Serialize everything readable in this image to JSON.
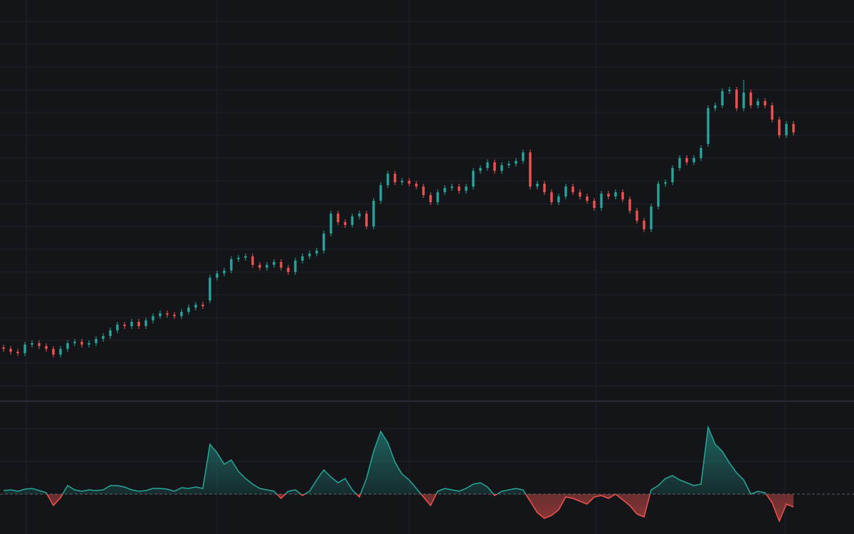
{
  "chart_data": [
    {
      "type": "candlestick",
      "up_color": "#26a69a",
      "down_color": "#ef5350",
      "grid": true,
      "xlim": [
        0,
        120
      ],
      "xticks": [
        3.7,
        30.5,
        57.5,
        83.8,
        110.3
      ],
      "ylim": [
        0,
        560
      ],
      "yticks": [
        20,
        52,
        84,
        116,
        148,
        180,
        212,
        244,
        276,
        308,
        340,
        372,
        404,
        436,
        468,
        500,
        532
      ],
      "open": [
        74,
        72,
        68,
        66,
        78,
        80,
        76,
        72,
        64,
        72,
        80,
        82,
        78,
        80,
        86,
        90,
        98,
        106,
        104,
        110,
        104,
        112,
        118,
        122,
        120,
        118,
        124,
        130,
        134,
        140,
        172,
        178,
        182,
        198,
        200,
        202,
        190,
        186,
        190,
        194,
        186,
        180,
        196,
        202,
        206,
        210,
        234,
        262,
        250,
        246,
        258,
        262,
        244,
        280,
        302,
        318,
        306,
        308,
        304,
        300,
        288,
        278,
        292,
        298,
        300,
        294,
        300,
        322,
        326,
        334,
        322,
        330,
        332,
        336,
        348,
        300,
        304,
        292,
        278,
        286,
        300,
        292,
        286,
        280,
        270,
        290,
        286,
        292,
        282,
        266,
        252,
        240,
        272,
        304,
        306,
        326,
        340,
        334,
        340,
        360,
        410,
        414,
        434,
        436,
        410,
        432,
        414,
        420,
        414,
        394,
        372,
        388
      ],
      "high": [
        78,
        76,
        72,
        82,
        84,
        84,
        80,
        76,
        76,
        84,
        86,
        86,
        84,
        90,
        94,
        102,
        110,
        110,
        114,
        114,
        116,
        122,
        126,
        126,
        124,
        128,
        134,
        138,
        138,
        176,
        182,
        186,
        202,
        204,
        206,
        206,
        194,
        194,
        198,
        198,
        190,
        200,
        206,
        210,
        214,
        238,
        266,
        266,
        254,
        262,
        266,
        266,
        284,
        306,
        322,
        322,
        312,
        312,
        308,
        304,
        292,
        296,
        302,
        304,
        304,
        304,
        326,
        330,
        338,
        338,
        334,
        336,
        340,
        352,
        352,
        308,
        308,
        296,
        290,
        304,
        304,
        296,
        290,
        284,
        294,
        294,
        296,
        296,
        286,
        270,
        256,
        276,
        308,
        310,
        330,
        344,
        344,
        344,
        358,
        414,
        418,
        438,
        440,
        440,
        450,
        436,
        424,
        424,
        418,
        398,
        392,
        392
      ],
      "low": [
        68,
        64,
        62,
        62,
        74,
        72,
        68,
        60,
        60,
        68,
        76,
        74,
        74,
        76,
        82,
        86,
        94,
        100,
        100,
        100,
        100,
        108,
        114,
        116,
        114,
        114,
        120,
        126,
        128,
        136,
        168,
        174,
        178,
        194,
        196,
        186,
        182,
        182,
        186,
        182,
        176,
        176,
        192,
        198,
        202,
        206,
        230,
        246,
        242,
        242,
        254,
        240,
        240,
        276,
        298,
        302,
        302,
        300,
        296,
        284,
        274,
        274,
        288,
        294,
        290,
        290,
        296,
        318,
        322,
        318,
        318,
        326,
        328,
        332,
        296,
        296,
        288,
        274,
        274,
        282,
        288,
        282,
        276,
        266,
        266,
        282,
        282,
        278,
        262,
        248,
        236,
        236,
        268,
        300,
        302,
        322,
        330,
        330,
        336,
        356,
        406,
        410,
        430,
        406,
        406,
        410,
        410,
        410,
        390,
        368,
        368,
        372
      ],
      "close": [
        72,
        68,
        66,
        78,
        80,
        76,
        72,
        64,
        72,
        80,
        82,
        78,
        80,
        86,
        90,
        98,
        106,
        104,
        110,
        104,
        112,
        118,
        122,
        120,
        118,
        124,
        130,
        134,
        132,
        172,
        178,
        182,
        198,
        200,
        202,
        190,
        186,
        190,
        194,
        186,
        180,
        196,
        202,
        206,
        210,
        234,
        262,
        250,
        246,
        258,
        262,
        244,
        280,
        302,
        318,
        306,
        308,
        304,
        300,
        288,
        278,
        292,
        298,
        300,
        294,
        300,
        322,
        326,
        334,
        322,
        330,
        332,
        336,
        348,
        300,
        304,
        292,
        278,
        286,
        300,
        292,
        286,
        280,
        270,
        290,
        286,
        292,
        282,
        266,
        252,
        240,
        272,
        304,
        306,
        326,
        340,
        334,
        340,
        354,
        410,
        414,
        434,
        436,
        410,
        432,
        414,
        420,
        414,
        394,
        372,
        388,
        376
      ]
    },
    {
      "type": "line",
      "color": "#26a69a",
      "negative_color": "#ef5350",
      "grid": true,
      "xlim": [
        0,
        120
      ],
      "xticks": [
        3.7,
        30.5,
        57.5,
        83.8,
        110.3
      ],
      "ylim": [
        -56,
        129
      ],
      "yticks": [
        0,
        46,
        92
      ],
      "values": [
        5,
        6,
        4,
        7,
        8,
        5,
        2,
        -16,
        -5,
        12,
        6,
        4,
        6,
        5,
        6,
        12,
        12,
        10,
        6,
        4,
        5,
        8,
        8,
        7,
        4,
        9,
        8,
        10,
        8,
        70,
        58,
        42,
        48,
        32,
        22,
        14,
        8,
        6,
        4,
        -6,
        4,
        6,
        -2,
        4,
        20,
        34,
        24,
        16,
        22,
        6,
        -4,
        22,
        60,
        88,
        72,
        45,
        28,
        20,
        8,
        -4,
        -16,
        4,
        8,
        6,
        4,
        8,
        14,
        16,
        10,
        -2,
        4,
        6,
        8,
        6,
        -10,
        -26,
        -34,
        -30,
        -22,
        -4,
        -6,
        -10,
        -14,
        -4,
        -2,
        -6,
        0,
        -8,
        -16,
        -28,
        -32,
        6,
        12,
        22,
        26,
        20,
        16,
        12,
        14,
        94,
        70,
        60,
        44,
        30,
        20,
        0,
        4,
        2,
        -12,
        -38,
        -14,
        -18
      ]
    }
  ]
}
